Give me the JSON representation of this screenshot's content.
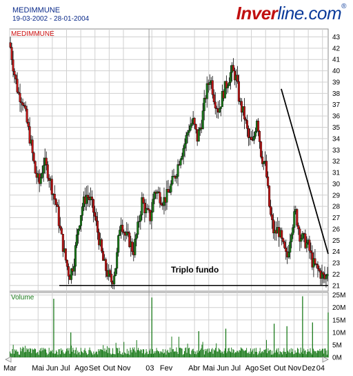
{
  "header": {
    "ticker": "MEDIMMUNE",
    "date_range": "19-03-2002 - 28-01-2004",
    "logo_bold": "Inver",
    "logo_rest": "line.com",
    "logo_mark": "®"
  },
  "chart_data": [
    {
      "type": "candlestick",
      "series_label": "MEDIMMUNE",
      "annotation": "Triplo fundo",
      "y_ticks": [
        21,
        22,
        23,
        24,
        25,
        26,
        27,
        28,
        29,
        30,
        31,
        32,
        33,
        34,
        35,
        36,
        37,
        38,
        39,
        40,
        41,
        42,
        43
      ],
      "ylim": [
        20.5,
        43.7
      ],
      "x_labels": [
        "Mar",
        "Mai",
        "Jun",
        "Jul",
        "Ago",
        "Set",
        "Out",
        "Nov",
        "03",
        "Fev",
        "Abr",
        "Mai",
        "Jun",
        "Jul",
        "Ago",
        "Set",
        "Out",
        "Nov",
        "Dez",
        "04"
      ],
      "x_label_months": [
        0,
        2,
        3,
        4,
        5,
        6,
        7,
        8,
        10,
        11,
        13,
        14,
        15,
        16,
        17,
        18,
        19,
        20,
        21,
        22
      ],
      "x_range_months": [
        0,
        22.4
      ],
      "year_divider_month": 9.8,
      "support_line": {
        "y": 21
      },
      "trend_line": {
        "from": {
          "month": 19.1,
          "y": 38.4
        },
        "to": {
          "month": 22.4,
          "y": 23.8
        }
      },
      "colors": {
        "up": "#1a7a1a",
        "down": "#c01616",
        "grid": "#cfcfcf",
        "volume": "#1a7a1a",
        "lines": "#000000"
      },
      "grid": true,
      "price_path": [
        [
          0.0,
          42.5
        ],
        [
          0.3,
          40.0
        ],
        [
          0.6,
          38.0
        ],
        [
          0.9,
          37.5
        ],
        [
          1.2,
          35.5
        ],
        [
          1.5,
          33.5
        ],
        [
          1.8,
          31.0
        ],
        [
          2.1,
          30.0
        ],
        [
          2.4,
          32.0
        ],
        [
          2.7,
          31.0
        ],
        [
          3.0,
          29.5
        ],
        [
          3.3,
          28.0
        ],
        [
          3.6,
          25.5
        ],
        [
          3.9,
          23.5
        ],
        [
          4.2,
          21.8
        ],
        [
          4.5,
          23.0
        ],
        [
          4.8,
          26.0
        ],
        [
          5.1,
          28.0
        ],
        [
          5.4,
          29.0
        ],
        [
          5.7,
          28.5
        ],
        [
          6.0,
          27.0
        ],
        [
          6.3,
          25.0
        ],
        [
          6.6,
          23.0
        ],
        [
          6.9,
          22.0
        ],
        [
          7.2,
          21.3
        ],
        [
          7.5,
          23.0
        ],
        [
          7.8,
          27.0
        ],
        [
          8.1,
          25.5
        ],
        [
          8.4,
          25.0
        ],
        [
          8.7,
          24.0
        ],
        [
          9.0,
          26.0
        ],
        [
          9.3,
          28.5
        ],
        [
          9.6,
          27.5
        ],
        [
          9.9,
          27.0
        ],
        [
          10.2,
          29.5
        ],
        [
          10.5,
          29.0
        ],
        [
          10.8,
          28.5
        ],
        [
          11.1,
          29.0
        ],
        [
          11.4,
          30.0
        ],
        [
          11.7,
          31.0
        ],
        [
          12.0,
          32.5
        ],
        [
          12.3,
          33.5
        ],
        [
          12.6,
          35.0
        ],
        [
          12.9,
          35.5
        ],
        [
          13.2,
          34.0
        ],
        [
          13.5,
          35.5
        ],
        [
          13.8,
          38.0
        ],
        [
          14.1,
          39.5
        ],
        [
          14.4,
          37.5
        ],
        [
          14.7,
          36.5
        ],
        [
          15.0,
          38.0
        ],
        [
          15.3,
          39.0
        ],
        [
          15.6,
          40.0
        ],
        [
          15.9,
          39.5
        ],
        [
          16.2,
          37.0
        ],
        [
          16.5,
          36.0
        ],
        [
          16.8,
          34.0
        ],
        [
          17.1,
          33.5
        ],
        [
          17.4,
          36.0
        ],
        [
          17.7,
          32.5
        ],
        [
          18.0,
          31.5
        ],
        [
          18.3,
          27.5
        ],
        [
          18.6,
          25.5
        ],
        [
          18.9,
          26.0
        ],
        [
          19.2,
          24.5
        ],
        [
          19.5,
          23.3
        ],
        [
          19.8,
          26.0
        ],
        [
          20.1,
          27.5
        ],
        [
          20.4,
          25.5
        ],
        [
          20.7,
          25.0
        ],
        [
          21.0,
          24.5
        ],
        [
          21.3,
          23.0
        ],
        [
          21.6,
          22.5
        ],
        [
          21.9,
          22.0
        ],
        [
          22.2,
          21.5
        ],
        [
          22.4,
          22.5
        ]
      ]
    },
    {
      "type": "bar",
      "series_label": "Volume",
      "y_ticks": [
        "0M",
        "5M",
        "10M",
        "15M",
        "20M",
        "25M"
      ],
      "y_tick_values": [
        0,
        5,
        10,
        15,
        20,
        25
      ],
      "ylim": [
        0,
        26
      ],
      "spikes": [
        [
          3.1,
          23.5
        ],
        [
          4.3,
          10.0
        ],
        [
          10.0,
          24.0
        ],
        [
          13.3,
          10.5
        ],
        [
          15.2,
          11.5
        ],
        [
          18.6,
          13.5
        ],
        [
          19.5,
          12.5
        ],
        [
          20.6,
          24.5
        ],
        [
          21.3,
          14.0
        ],
        [
          22.4,
          18.0
        ]
      ],
      "typical_level": 2.5
    }
  ]
}
